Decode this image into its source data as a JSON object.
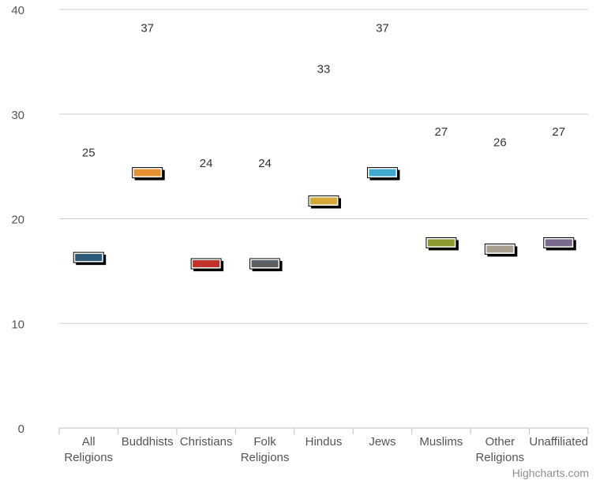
{
  "chart_data": {
    "type": "scatter",
    "title": "",
    "xlabel": "",
    "ylabel": "",
    "categories": [
      "All Religions",
      "Buddhists",
      "Christians",
      "Folk Religions",
      "Hindus",
      "Jews",
      "Muslims",
      "Other Religions",
      "Unaffiliated"
    ],
    "values": [
      16.3,
      24.4,
      15.7,
      15.7,
      21.7,
      24.4,
      17.7,
      17.1,
      17.7
    ],
    "labels": [
      "25",
      "37",
      "24",
      "24",
      "33",
      "37",
      "27",
      "26",
      "27"
    ],
    "label_values": [
      26.4,
      38.3,
      25.4,
      25.4,
      34.4,
      38.3,
      28.4,
      27.4,
      28.4
    ],
    "colors": [
      "#2e5a7a",
      "#e6912e",
      "#c0322a",
      "#5a5f63",
      "#d4a93a",
      "#3fa8cf",
      "#8e9a2f",
      "#a89f90",
      "#7a6a8e"
    ],
    "ylim": [
      0,
      40
    ],
    "yticks": [
      0,
      10,
      20,
      30,
      40
    ],
    "grid": true,
    "legend": "none"
  },
  "credits": "Highcharts.com"
}
